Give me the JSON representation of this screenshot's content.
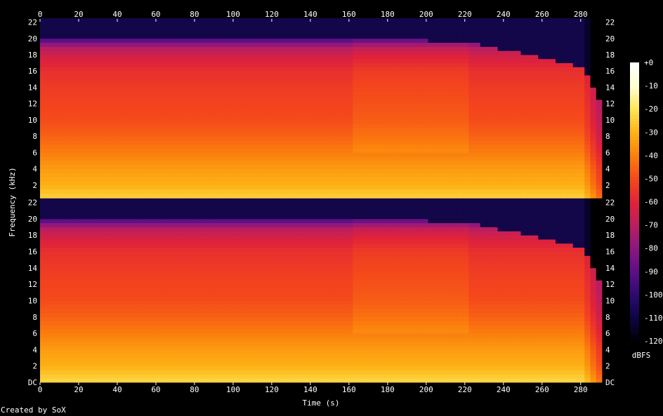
{
  "chart_data": {
    "type": "heatmap",
    "subtype": "spectrogram",
    "channels": 2,
    "xlabel": "Time (s)",
    "ylabel": "Frequency (kHz)",
    "xlim": [
      0,
      291
    ],
    "ylim": [
      0,
      22.05
    ],
    "x_ticks": [
      0,
      20,
      40,
      60,
      80,
      100,
      120,
      140,
      160,
      180,
      200,
      220,
      240,
      260,
      280
    ],
    "x_tick_labels": [
      "0",
      "20",
      "40",
      "60",
      "80",
      "100",
      "120",
      "140",
      "160",
      "180",
      "200",
      "220",
      "240",
      "260",
      "280"
    ],
    "y_ticks": [
      0,
      2,
      4,
      6,
      8,
      10,
      12,
      14,
      16,
      18,
      20,
      22
    ],
    "y_tick_labels": [
      "DC",
      "2",
      "4",
      "6",
      "8",
      "10",
      "12",
      "14",
      "16",
      "18",
      "20",
      "22"
    ],
    "colorbar": {
      "label": "dBFS",
      "range": [
        -120,
        0
      ],
      "ticks": [
        0,
        -10,
        -20,
        -30,
        -40,
        -50,
        -60,
        -70,
        -80,
        -90,
        -100,
        -110,
        -120
      ],
      "tick_labels": [
        "+0",
        "-10",
        "-20",
        "-30",
        "-40",
        "-50",
        "-60",
        "-70",
        "-80",
        "-90",
        "-100",
        "-110",
        "-120"
      ],
      "colormap": [
        "#000000",
        "#0d0540",
        "#2b0a6e",
        "#5a0f86",
        "#8a1681",
        "#b81e62",
        "#e0223a",
        "#f4461c",
        "#fb7d0d",
        "#fdb114",
        "#fde352",
        "#ffffd0",
        "#ffffff"
      ]
    },
    "grid": false,
    "profile": {
      "time_breaks": [
        0,
        163,
        222,
        281,
        291
      ],
      "lowpass_cutoff_khz": [
        19.8,
        20.0,
        19.6,
        16.5,
        12.0
      ],
      "level_vs_freq_khz": [
        0,
        1,
        2,
        3,
        4,
        5,
        6,
        8,
        10,
        12,
        14,
        16,
        18,
        19,
        20,
        22
      ],
      "level_vs_freq_dbfs": [
        -22,
        -26,
        -30,
        -32,
        -34,
        -37,
        -40,
        -45,
        -49,
        -51,
        -53,
        -56,
        -64,
        -72,
        -95,
        -112
      ]
    }
  },
  "footer": {
    "credit": "Created by SoX"
  }
}
